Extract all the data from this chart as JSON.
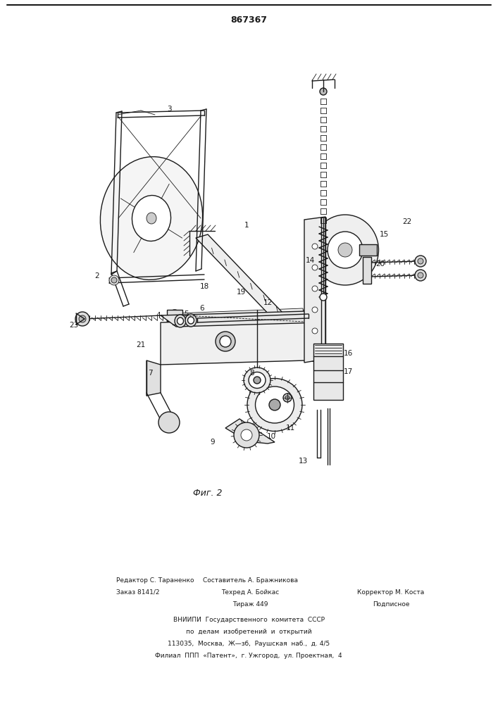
{
  "patent_number": "867367",
  "fig_caption": "Фиг. 2",
  "bg_color": "#ffffff",
  "line_color": "#1a1a1a",
  "footer_lines": [
    {
      "col1": "Редактор С. Тараненко",
      "col2": "Составитель А. Бражникова",
      "col3": ""
    },
    {
      "col1": "Заказ 8141/2",
      "col2": "Техред А. Бойкас",
      "col3": "Корректор М. Коста"
    },
    {
      "col1": "",
      "col2": "Тираж 449",
      "col3": "Подписное"
    }
  ],
  "footer_vniipи": "ВНИИПИ  Государственного  комитета  СССР",
  "footer_po": "по  делам  изобретений  и  открытий",
  "footer_addr": "113035,  Москва,  Ж—зб,  Раушская  наб.,  д. 4/5",
  "footer_filial": "Филиал  ППП  «Патент»,  г. Ужгород,  ул. Проектная,  4"
}
